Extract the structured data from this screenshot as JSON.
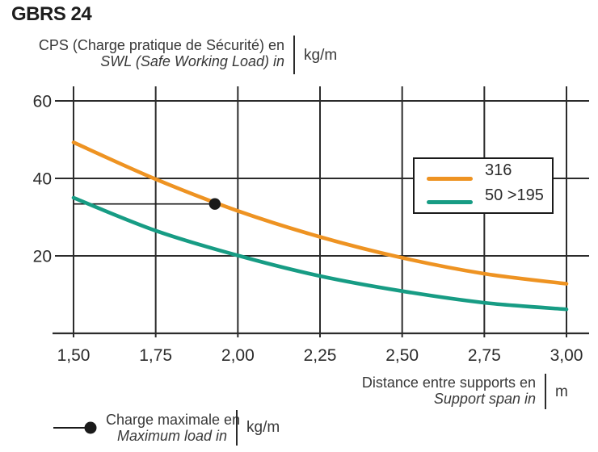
{
  "title": "GBRS 24",
  "y_axis_header": {
    "line1": "CPS (Charge pratique de Sécurité) en",
    "line2": "SWL (Safe Working Load) in",
    "unit": "kg/m"
  },
  "x_axis_header": {
    "line1": "Distance entre supports en",
    "line2": "Support span in",
    "unit": "m"
  },
  "max_load_legend": {
    "line1": "Charge maximale en",
    "line2": "Maximum load in",
    "unit": "kg/m"
  },
  "legend": {
    "position": "upper right",
    "entries": [
      {
        "label": "316",
        "color": "#EE9322"
      },
      {
        "label": "50 >195",
        "color": "#179C84"
      }
    ]
  },
  "colors": {
    "grid": "#2b2b2b",
    "tick_text": "#2b2b2b",
    "marker": "#1a1a1a",
    "orange": "#EE9322",
    "teal": "#179C84"
  },
  "chart_data": {
    "type": "line",
    "title": "GBRS 24",
    "xlabel": "Distance entre supports en / Support span in (m)",
    "ylabel": "CPS (Charge pratique de Sécurité) / SWL (Safe Working Load) (kg/m)",
    "xlim": [
      1.5,
      3.0
    ],
    "ylim": [
      0,
      63
    ],
    "grid": true,
    "legend_position": "upper right",
    "x_ticks": [
      1.5,
      1.75,
      2.0,
      2.25,
      2.5,
      2.75,
      3.0
    ],
    "x_tick_labels": [
      "1,50",
      "1,75",
      "2,00",
      "2,25",
      "2,50",
      "2,75",
      "3,00"
    ],
    "y_ticks": [
      20,
      40,
      60
    ],
    "y_tick_labels": [
      "20",
      "40",
      "60"
    ],
    "series": [
      {
        "name": "316",
        "color": "#EE9322",
        "x": [
          1.5,
          1.75,
          2.0,
          2.25,
          2.5,
          2.75,
          3.0
        ],
        "y": [
          49.3,
          39.8,
          31.6,
          24.9,
          19.5,
          15.4,
          12.8
        ]
      },
      {
        "name": "50 >195",
        "color": "#179C84",
        "x": [
          1.5,
          1.75,
          2.0,
          2.25,
          2.5,
          2.75,
          3.0
        ],
        "y": [
          35.0,
          26.5,
          20.1,
          14.8,
          10.9,
          7.9,
          6.2
        ]
      }
    ],
    "max_load_marker": {
      "x": 1.93,
      "y": 33.4,
      "on_series": "316",
      "ref_line_from_y_axis": true
    }
  }
}
